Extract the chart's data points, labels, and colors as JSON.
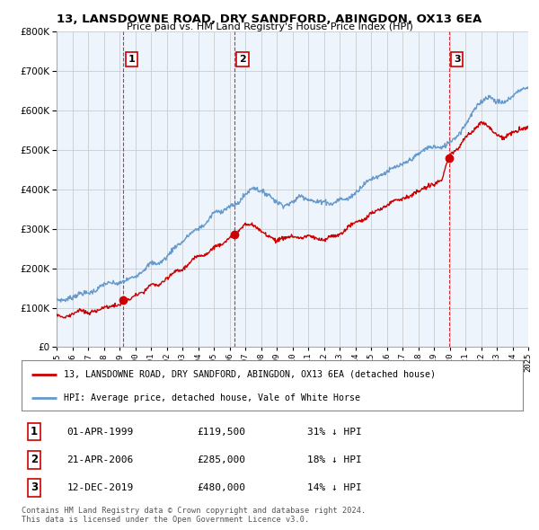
{
  "title1": "13, LANSDOWNE ROAD, DRY SANDFORD, ABINGDON, OX13 6EA",
  "title2": "Price paid vs. HM Land Registry's House Price Index (HPI)",
  "legend_line1": "13, LANSDOWNE ROAD, DRY SANDFORD, ABINGDON, OX13 6EA (detached house)",
  "legend_line2": "HPI: Average price, detached house, Vale of White Horse",
  "footer1": "Contains HM Land Registry data © Crown copyright and database right 2024.",
  "footer2": "This data is licensed under the Open Government Licence v3.0.",
  "sales": [
    {
      "label": "1",
      "date": "01-APR-1999",
      "price": 119500,
      "hpi_pct": "31% ↓ HPI",
      "x": 1999.25
    },
    {
      "label": "2",
      "date": "21-APR-2006",
      "price": 285000,
      "hpi_pct": "18% ↓ HPI",
      "x": 2006.3
    },
    {
      "label": "3",
      "date": "12-DEC-2019",
      "price": 480000,
      "hpi_pct": "14% ↓ HPI",
      "x": 2019.95
    }
  ],
  "ylim": [
    0,
    800000
  ],
  "xlim": [
    1995,
    2025
  ],
  "red_color": "#cc0000",
  "blue_color": "#6699cc",
  "blue_fill": "#ddeeff",
  "marker_box_color": "#cc0000",
  "grid_color": "#cccccc",
  "background_color": "#ffffff",
  "plot_bg": "#eef4fc",
  "hpi_years": [
    1995.0,
    1995.5,
    1996.0,
    1996.5,
    1997.0,
    1997.5,
    1998.0,
    1998.5,
    1999.0,
    1999.5,
    2000.0,
    2000.5,
    2001.0,
    2001.5,
    2002.0,
    2002.5,
    2003.0,
    2003.5,
    2004.0,
    2004.5,
    2005.0,
    2005.5,
    2006.0,
    2006.5,
    2007.0,
    2007.5,
    2008.0,
    2008.5,
    2009.0,
    2009.5,
    2010.0,
    2010.5,
    2011.0,
    2011.5,
    2012.0,
    2012.5,
    2013.0,
    2013.5,
    2014.0,
    2014.5,
    2015.0,
    2015.5,
    2016.0,
    2016.5,
    2017.0,
    2017.5,
    2018.0,
    2018.5,
    2019.0,
    2019.5,
    2020.0,
    2020.5,
    2021.0,
    2021.5,
    2022.0,
    2022.5,
    2023.0,
    2023.5,
    2024.0,
    2024.5,
    2025.0
  ],
  "hpi_vals": [
    118000,
    121000,
    125000,
    130000,
    138000,
    145000,
    152000,
    158000,
    163000,
    168000,
    180000,
    195000,
    210000,
    220000,
    235000,
    255000,
    270000,
    285000,
    305000,
    320000,
    335000,
    345000,
    355000,
    370000,
    390000,
    405000,
    400000,
    385000,
    370000,
    360000,
    368000,
    375000,
    375000,
    372000,
    368000,
    368000,
    375000,
    385000,
    398000,
    412000,
    425000,
    435000,
    448000,
    460000,
    472000,
    480000,
    492000,
    500000,
    508000,
    515000,
    522000,
    540000,
    568000,
    595000,
    618000,
    632000,
    628000,
    622000,
    635000,
    648000,
    660000
  ],
  "red_years": [
    1995.0,
    1995.5,
    1996.0,
    1996.5,
    1997.0,
    1997.5,
    1998.0,
    1998.5,
    1999.0,
    1999.25,
    1999.5,
    2000.0,
    2000.5,
    2001.0,
    2001.5,
    2002.0,
    2002.5,
    2003.0,
    2003.5,
    2004.0,
    2004.5,
    2005.0,
    2005.5,
    2006.0,
    2006.3,
    2006.5,
    2007.0,
    2007.5,
    2008.0,
    2008.5,
    2009.0,
    2009.5,
    2010.0,
    2010.5,
    2011.0,
    2011.5,
    2012.0,
    2012.5,
    2013.0,
    2013.5,
    2014.0,
    2014.5,
    2015.0,
    2015.5,
    2016.0,
    2016.5,
    2017.0,
    2017.5,
    2018.0,
    2018.5,
    2019.0,
    2019.5,
    2019.95,
    2020.0,
    2020.5,
    2021.0,
    2021.5,
    2022.0,
    2022.5,
    2023.0,
    2023.5,
    2024.0,
    2024.5,
    2025.0
  ],
  "red_vals": [
    78000,
    80000,
    83000,
    87000,
    91000,
    96000,
    101000,
    108000,
    114000,
    119500,
    123000,
    132000,
    143000,
    155000,
    163000,
    175000,
    190000,
    202000,
    215000,
    230000,
    243000,
    254000,
    263000,
    271000,
    285000,
    293000,
    308000,
    305000,
    290000,
    278000,
    270000,
    274000,
    278000,
    276000,
    272000,
    270000,
    272000,
    278000,
    286000,
    298000,
    310000,
    323000,
    334000,
    344000,
    355000,
    365000,
    376000,
    385000,
    396000,
    405000,
    413000,
    420000,
    480000,
    483000,
    500000,
    525000,
    548000,
    560000,
    555000,
    540000,
    535000,
    542000,
    550000,
    555000
  ]
}
